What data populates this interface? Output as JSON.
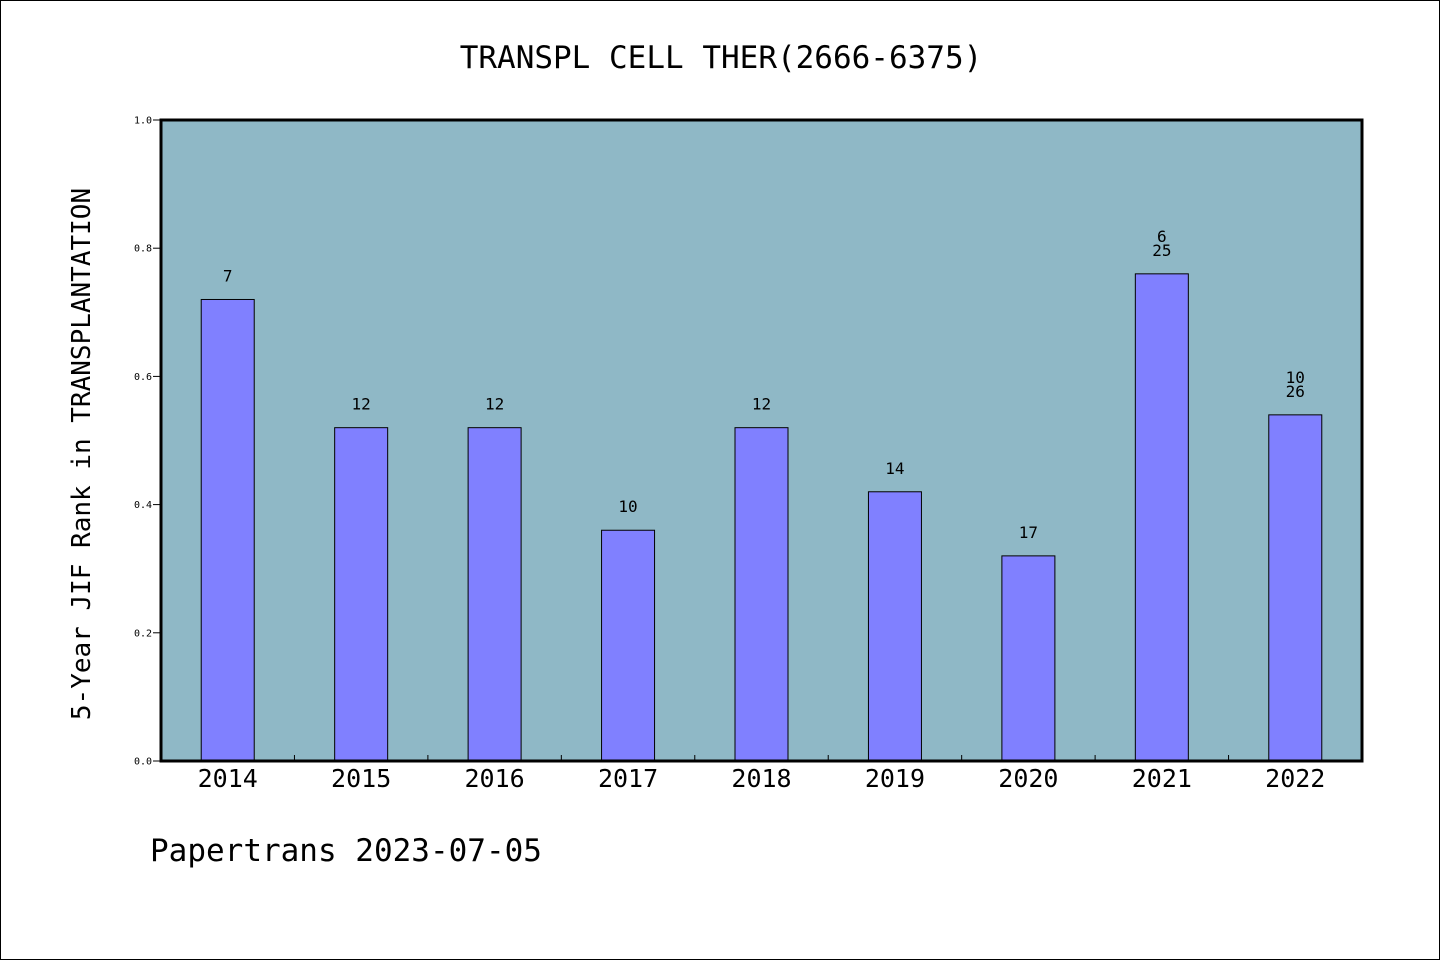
{
  "footer": "Papertrans 2023-07-05",
  "colors": {
    "plot_background": "#8fb8c6",
    "bar_fill": "#8080ff",
    "bar_stroke": "#000000",
    "text": "#000000"
  },
  "chart_data": {
    "type": "bar",
    "title": "TRANSPL CELL THER(2666-6375)",
    "xlabel": "",
    "ylabel": "5-Year JIF Rank in TRANSPLANTATION",
    "categories": [
      "2014",
      "2015",
      "2016",
      "2017",
      "2018",
      "2019",
      "2020",
      "2021",
      "2022"
    ],
    "values": [
      0.72,
      0.52,
      0.52,
      0.36,
      0.52,
      0.42,
      0.32,
      0.76,
      0.54
    ],
    "bar_labels": [
      [
        "7"
      ],
      [
        "12"
      ],
      [
        "12"
      ],
      [
        "10"
      ],
      [
        "12"
      ],
      [
        "14"
      ],
      [
        "17"
      ],
      [
        "6",
        "25"
      ],
      [
        "10",
        "26"
      ]
    ],
    "ylim": [
      0,
      1
    ],
    "yticks": [
      "0.0",
      "0.2",
      "0.4",
      "0.6",
      "0.8",
      "1.0"
    ],
    "grid": false
  }
}
